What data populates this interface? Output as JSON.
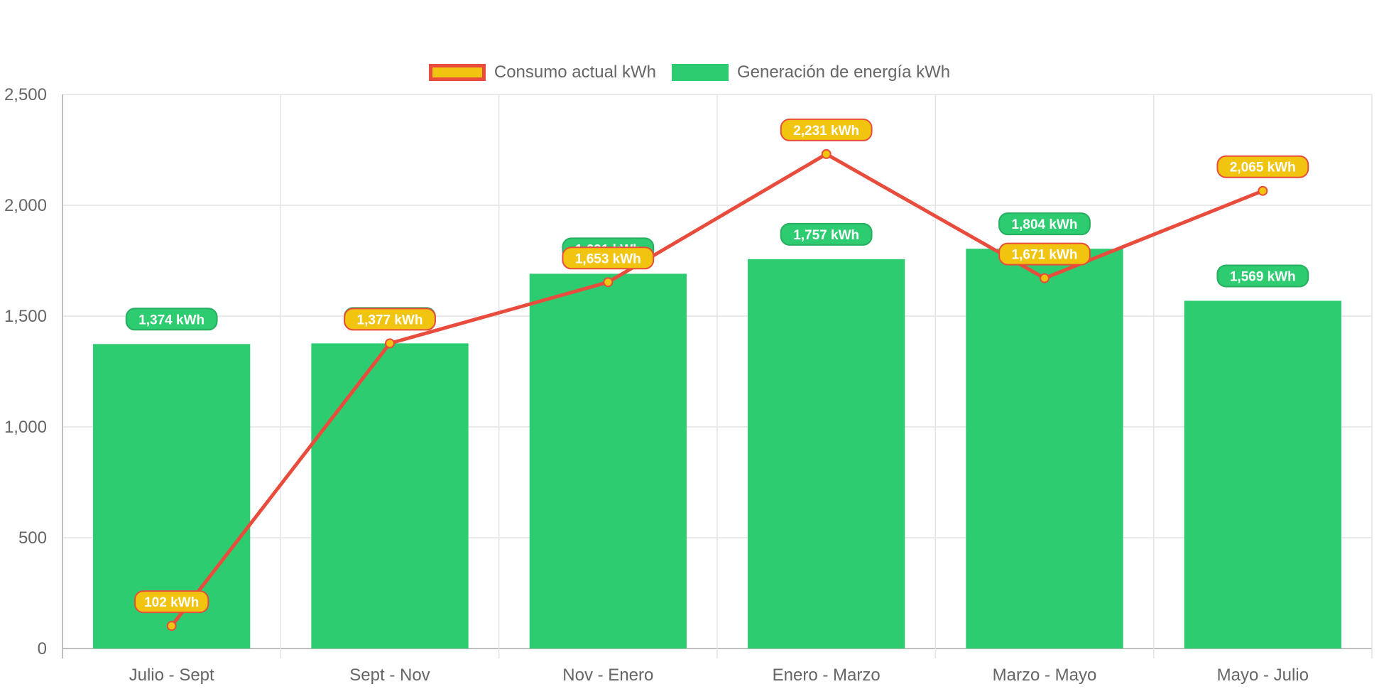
{
  "chart_data": {
    "type": "bar",
    "categories": [
      "Julio - Sept",
      "Sept - Nov",
      "Nov - Enero",
      "Enero - Marzo",
      "Marzo - Mayo",
      "Mayo - Julio"
    ],
    "series": [
      {
        "name": "Generación de energía kWh",
        "type": "bar",
        "values": [
          1374,
          1377,
          1691,
          1757,
          1804,
          1569
        ],
        "data_labels": [
          "1,374 kWh",
          "1,377 kWh",
          "1,691 kWh",
          "1,757 kWh",
          "1,804 kWh",
          "1,569 kWh"
        ],
        "color": "#2ecc71"
      },
      {
        "name": "Consumo actual kWh",
        "type": "line",
        "values": [
          102,
          1377,
          1653,
          2231,
          1671,
          2065
        ],
        "data_labels": [
          "102 kWh",
          "1,377 kWh",
          "1,653 kWh",
          "2,231 kWh",
          "1,671 kWh",
          "2,065 kWh"
        ],
        "color": "#e74c3c",
        "fill": "#f1c40f"
      }
    ],
    "ylim": [
      0,
      2500
    ],
    "yticks": [
      0,
      500,
      1000,
      1500,
      2000,
      2500
    ],
    "ytick_labels": [
      "0",
      "500",
      "1,000",
      "1,500",
      "2,000",
      "2,500"
    ],
    "grid": true,
    "legend_position": "top-center",
    "legend": [
      {
        "label": "Consumo actual kWh",
        "swatch_fill": "#f1c40f",
        "swatch_border": "#e74c3c"
      },
      {
        "label": "Generación de energía kWh",
        "swatch_fill": "#2ecc71",
        "swatch_border": "#2ecc71"
      }
    ],
    "title": "",
    "xlabel": "",
    "ylabel": ""
  }
}
